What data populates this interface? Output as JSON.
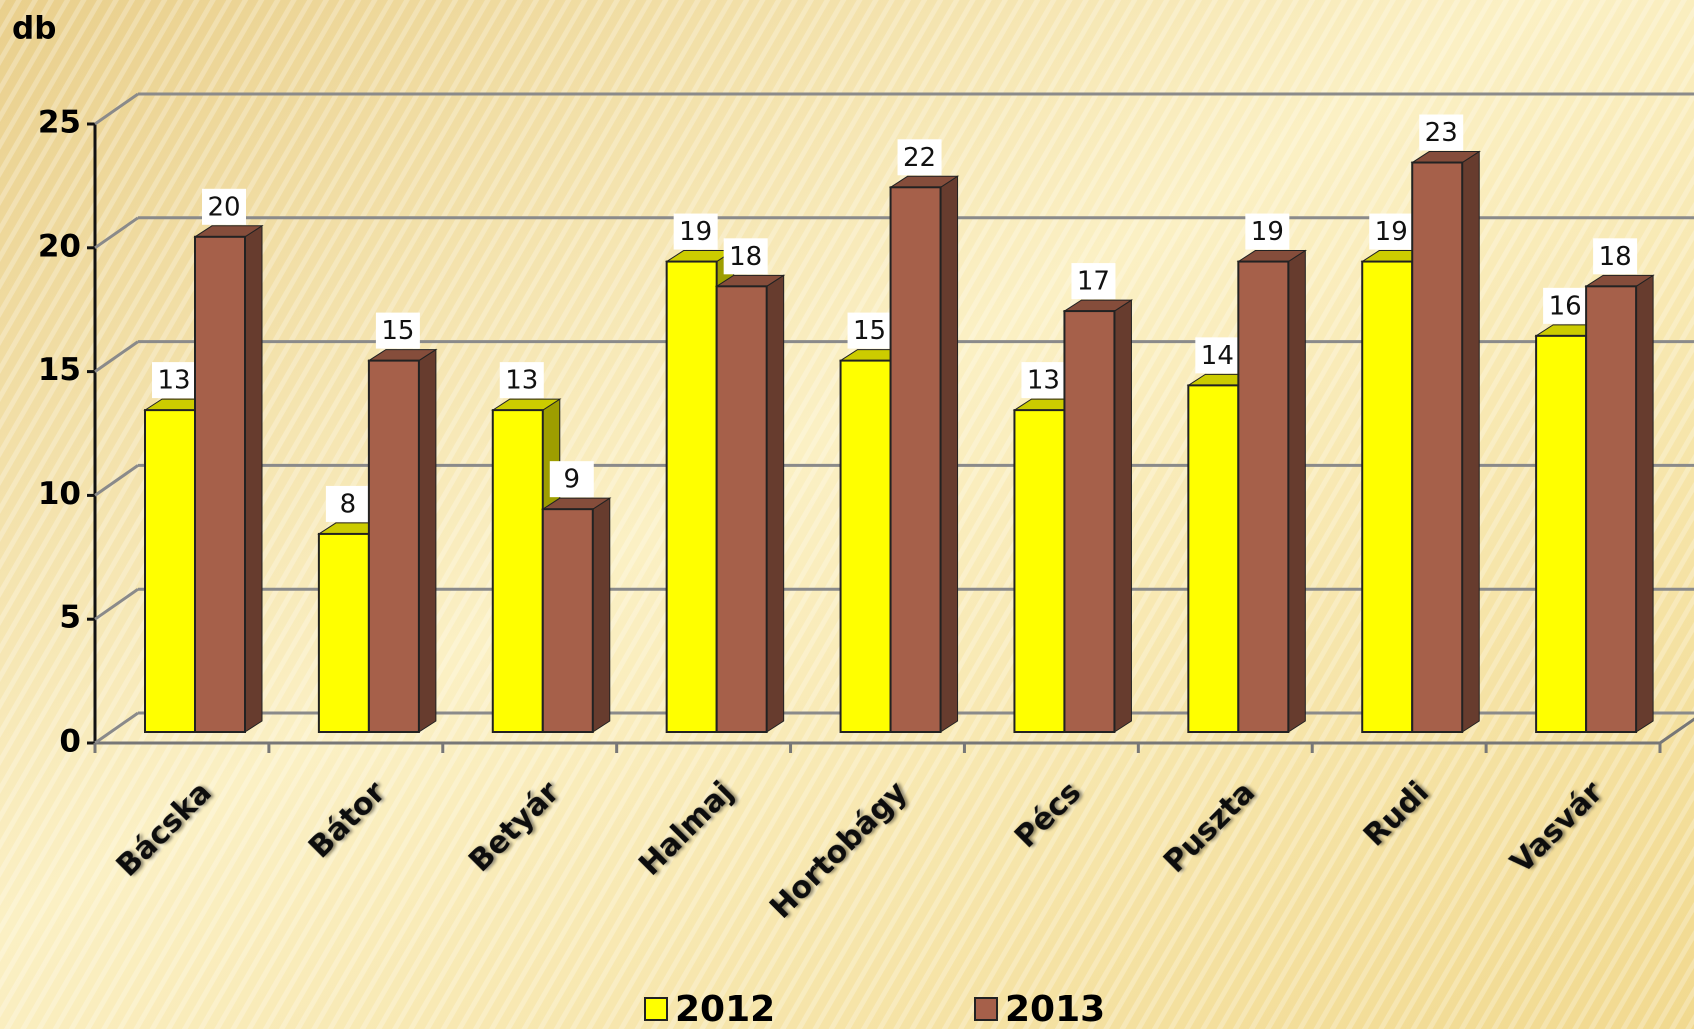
{
  "chart_data": {
    "type": "bar3d",
    "y_label": "db",
    "categories": [
      "Bácska",
      "Bátor",
      "Betyár",
      "Halmaj",
      "Hortobágy",
      "Pécs",
      "Puszta",
      "Rudi",
      "Vasvár"
    ],
    "series": [
      {
        "name": "2012",
        "color": "#ffff00",
        "values": [
          13,
          8,
          13,
          19,
          15,
          13,
          14,
          19,
          16
        ]
      },
      {
        "name": "2013",
        "color": "#a6604a",
        "values": [
          20,
          15,
          9,
          18,
          22,
          17,
          19,
          23,
          18
        ]
      }
    ],
    "ylim": [
      0,
      25
    ],
    "yticks": [
      0,
      5,
      10,
      15,
      20,
      25
    ],
    "grid": true,
    "legend": "bottom"
  }
}
